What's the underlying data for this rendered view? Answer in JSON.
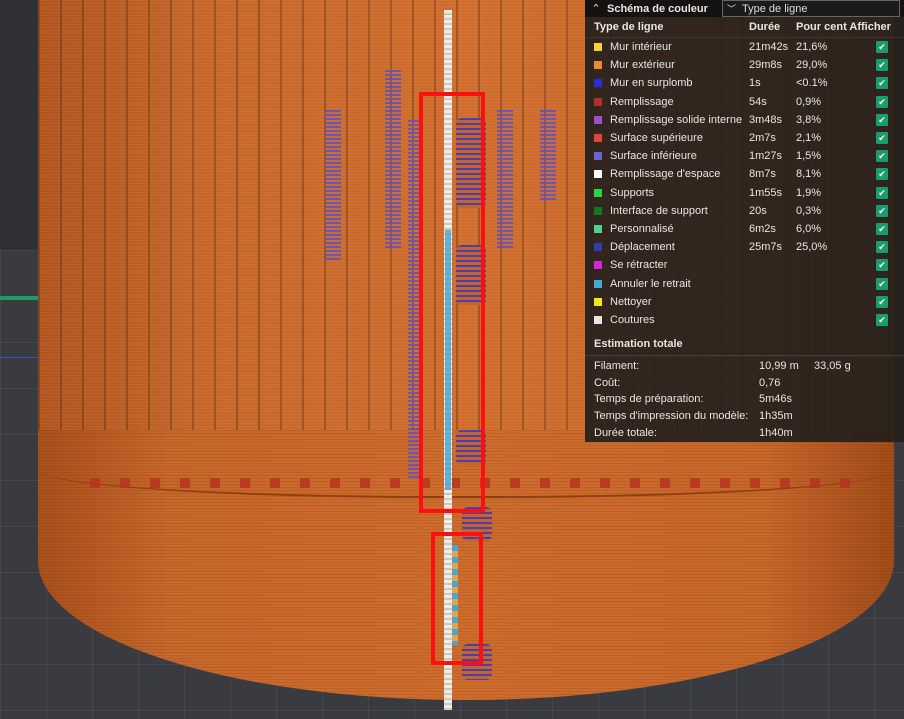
{
  "legend": {
    "title": "Schéma de couleur",
    "scheme_value": "Type de ligne",
    "headers": {
      "type": "Type de ligne",
      "duration": "Durée",
      "percent": "Pour cent",
      "show": "Afficher"
    },
    "rows": [
      {
        "label": "Mur intérieur",
        "duration": "21m42s",
        "percent": "21,6%",
        "color": "#f5d23a"
      },
      {
        "label": "Mur extérieur",
        "duration": "29m8s",
        "percent": "29,0%",
        "color": "#f08a2e"
      },
      {
        "label": "Mur en surplomb",
        "duration": "1s",
        "percent": "<0.1%",
        "color": "#2b2bd9"
      },
      {
        "label": "Remplissage",
        "duration": "54s",
        "percent": "0,9%",
        "color": "#b0302a"
      },
      {
        "label": "Remplissage solide interne",
        "duration": "3m48s",
        "percent": "3,8%",
        "color": "#9a4fd0"
      },
      {
        "label": "Surface supérieure",
        "duration": "2m7s",
        "percent": "2,1%",
        "color": "#e0443c"
      },
      {
        "label": "Surface inférieure",
        "duration": "1m27s",
        "percent": "1,5%",
        "color": "#6a63d6"
      },
      {
        "label": "Remplissage d'espace",
        "duration": "8m7s",
        "percent": "8,1%",
        "color": "#ffffff"
      },
      {
        "label": "Supports",
        "duration": "1m55s",
        "percent": "1,9%",
        "color": "#27d640"
      },
      {
        "label": "Interface de support",
        "duration": "20s",
        "percent": "0,3%",
        "color": "#127a1c"
      },
      {
        "label": "Personnalisé",
        "duration": "6m2s",
        "percent": "6,0%",
        "color": "#4ecf8a"
      },
      {
        "label": "Déplacement",
        "duration": "25m7s",
        "percent": "25,0%",
        "color": "#2d3fb0"
      },
      {
        "label": "Se rétracter",
        "duration": "",
        "percent": "",
        "color": "#d22ad2"
      },
      {
        "label": "Annuler le retrait",
        "duration": "",
        "percent": "",
        "color": "#49a7d4"
      },
      {
        "label": "Nettoyer",
        "duration": "",
        "percent": "",
        "color": "#f2e41f"
      },
      {
        "label": "Coutures",
        "duration": "",
        "percent": "",
        "color": "#e6e6e6"
      }
    ],
    "estimate": {
      "title": "Estimation totale",
      "filament_label": "Filament:",
      "filament_length": "10,99 m",
      "filament_weight": "33,05 g",
      "cost_label": "Coût:",
      "cost_value": "0,76",
      "prep_label": "Temps de préparation:",
      "prep_value": "5m46s",
      "model_label": "Temps d'impression du modèle:",
      "model_value": "1h35m",
      "total_label": "Durée totale:",
      "total_value": "1h40m"
    }
  }
}
